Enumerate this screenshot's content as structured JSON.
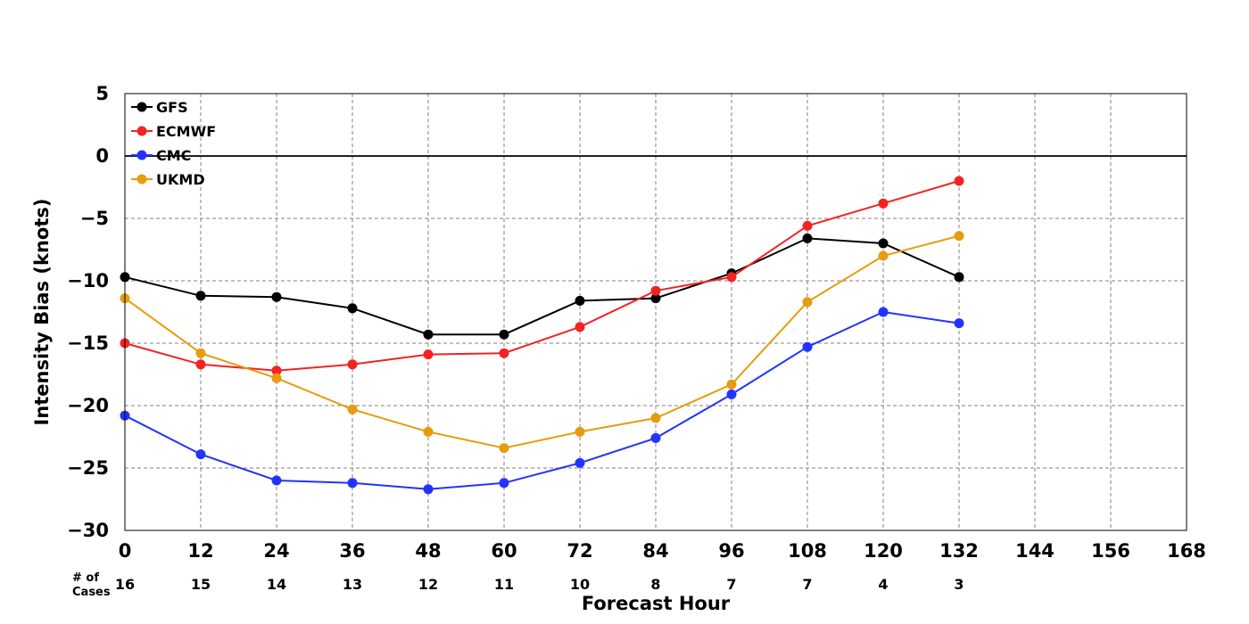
{
  "chart_data": {
    "type": "line",
    "title": "",
    "xlabel": "Forecast Hour",
    "ylabel": "Intensity Bias (knots)",
    "xlim": [
      0,
      168
    ],
    "ylim": [
      -30,
      5
    ],
    "x_ticks": [
      0,
      12,
      24,
      36,
      48,
      60,
      72,
      84,
      96,
      108,
      120,
      132,
      144,
      156,
      168
    ],
    "y_ticks": [
      5,
      0,
      -5,
      -10,
      -15,
      -20,
      -25,
      -30
    ],
    "y_tick_labels": [
      "5",
      "0",
      "−5",
      "−10",
      "−15",
      "−20",
      "−25",
      "−30"
    ],
    "grid": true,
    "zero_line": true,
    "legend_position": "top-left",
    "x": [
      0,
      12,
      24,
      36,
      48,
      60,
      72,
      84,
      96,
      108,
      120,
      132
    ],
    "series": [
      {
        "name": "GFS",
        "color": "#000000",
        "values": [
          -9.7,
          -11.2,
          -11.3,
          -12.2,
          -14.3,
          -14.3,
          -11.6,
          -11.4,
          -9.4,
          -6.6,
          -7.0,
          -9.7
        ]
      },
      {
        "name": "ECMWF",
        "color": "#f52222",
        "values": [
          -15.0,
          -16.7,
          -17.2,
          -16.7,
          -15.9,
          -15.8,
          -13.7,
          -10.8,
          -9.7,
          -5.6,
          -3.8,
          -2.0
        ]
      },
      {
        "name": "CMC",
        "color": "#2233ff",
        "values": [
          -20.8,
          -23.9,
          -26.0,
          -26.2,
          -26.7,
          -26.2,
          -24.6,
          -22.6,
          -19.1,
          -15.3,
          -12.5,
          -13.4
        ]
      },
      {
        "name": "UKMD",
        "color": "#e69c0e",
        "values": [
          -11.4,
          -15.8,
          -17.8,
          -20.3,
          -22.1,
          -23.4,
          -22.1,
          -21.0,
          -18.3,
          -11.7,
          -8.0,
          -6.4
        ]
      }
    ],
    "cases": {
      "label_line1": "# of",
      "label_line2": "Cases",
      "values": [
        "16",
        "15",
        "14",
        "13",
        "12",
        "11",
        "10",
        "8",
        "7",
        "7",
        "4",
        "3"
      ]
    }
  }
}
